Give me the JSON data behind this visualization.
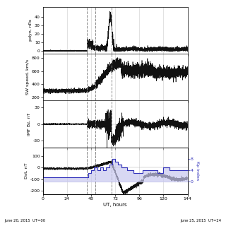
{
  "xlabel": "UT, hours",
  "xlim": [
    0,
    144
  ],
  "xticks": [
    0,
    24,
    48,
    72,
    96,
    120,
    144
  ],
  "dashed_lines": [
    44,
    52,
    68
  ],
  "panel1_ylabel": "pdyn, nPa",
  "panel1_ylim": [
    -3,
    52
  ],
  "panel1_yticks": [
    0,
    10,
    20,
    30,
    40
  ],
  "panel2_ylabel": "SW speed, km/s",
  "panel2_ylim": [
    150,
    870
  ],
  "panel2_yticks": [
    200,
    400,
    600,
    800
  ],
  "panel3_ylabel": "IMF Bz, nT",
  "panel3_ylim": [
    -42,
    42
  ],
  "panel3_yticks": [
    -30,
    0,
    30
  ],
  "panel4_ylabel": "Dst, nT",
  "panel4_ylim": [
    -230,
    175
  ],
  "panel4_yticks": [
    -200,
    -100,
    0,
    100
  ],
  "kp_ylabel": "Kp index",
  "kp_yticks": [
    0,
    4,
    8
  ],
  "kp_ylim": [
    -4.5,
    12
  ],
  "line_color": "#111111",
  "kp_color": "#3333bb",
  "kp_fill_color": "#c8c8ee",
  "kp_bg_color": "#dcdcf5",
  "bottom_label_left": "June 20, 2015  UT=00",
  "bottom_label_right": "June 25, 2015  UT=24"
}
